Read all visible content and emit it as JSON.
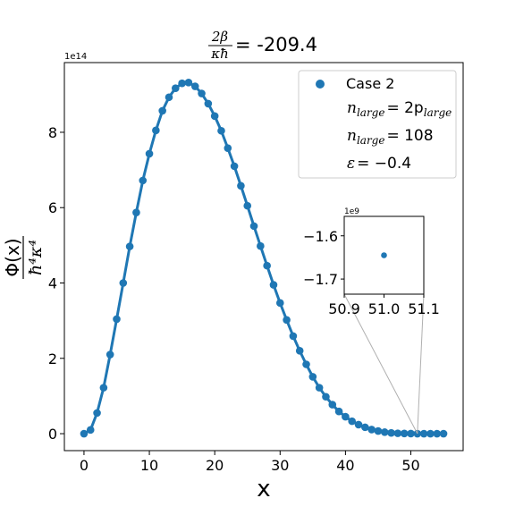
{
  "chart_data": {
    "type": "line",
    "title": {
      "numerator": "2β",
      "denominator": "κħ",
      "value": "= -209.4"
    },
    "xlabel": "x",
    "ylabel": {
      "numerator": "Φ(x)",
      "denominator": "ħ⁴κ⁴"
    },
    "y_offset_label": "1e14",
    "xlim": [
      -3.0,
      58.0
    ],
    "ylim": [
      -0.45,
      9.85
    ],
    "xticks": [
      0,
      10,
      20,
      30,
      40,
      50
    ],
    "xtick_labels": [
      "0",
      "10",
      "20",
      "30",
      "40",
      "50"
    ],
    "yticks": [
      0,
      2,
      4,
      6,
      8
    ],
    "ytick_labels": [
      "0",
      "2",
      "4",
      "6",
      "8"
    ],
    "grid": false,
    "legend_position": "top-right",
    "color": "#1f77b4",
    "series": [
      {
        "name": "Case 2",
        "x": [
          0,
          1,
          2,
          3,
          4,
          5,
          6,
          7,
          8,
          9,
          10,
          11,
          12,
          13,
          14,
          15,
          16,
          17,
          18,
          19,
          20,
          21,
          22,
          23,
          24,
          25,
          26,
          27,
          28,
          29,
          30,
          31,
          32,
          33,
          34,
          35,
          36,
          37,
          38,
          39,
          40,
          41,
          42,
          43,
          44,
          45,
          46,
          47,
          48,
          49,
          50,
          51,
          52,
          53,
          54,
          55
        ],
        "y": [
          0.0,
          0.1,
          0.55,
          1.22,
          2.1,
          3.04,
          4.0,
          4.97,
          5.87,
          6.72,
          7.43,
          8.05,
          8.57,
          8.93,
          9.17,
          9.3,
          9.32,
          9.22,
          9.03,
          8.76,
          8.43,
          8.04,
          7.58,
          7.1,
          6.58,
          6.05,
          5.51,
          4.98,
          4.46,
          3.95,
          3.47,
          3.02,
          2.59,
          2.2,
          1.84,
          1.51,
          1.22,
          0.98,
          0.77,
          0.59,
          0.45,
          0.33,
          0.24,
          0.17,
          0.11,
          0.07,
          0.04,
          0.02,
          0.01,
          0.005,
          0.002,
          0.0,
          0.0,
          0.0,
          0.0,
          0.0
        ]
      }
    ],
    "legend": {
      "entries": [
        "Case 2"
      ],
      "notes": [
        {
          "sym": "n",
          "sub": "large",
          "rhs": "= 2p",
          "rhs_sub": "large"
        },
        {
          "sym": "n",
          "sub": "large",
          "rhs": "= 108",
          "rhs_sub": ""
        },
        {
          "sym": "ε",
          "sub": "",
          "rhs": "= −0.4",
          "rhs_sub": ""
        }
      ]
    },
    "inset": {
      "offset_label": "1e9",
      "xlim": [
        50.9,
        51.1
      ],
      "ylim": [
        -1.735,
        -1.555
      ],
      "xticks": [
        50.9,
        51.0,
        51.1
      ],
      "xtick_labels": [
        "50.9",
        "51.0",
        "51.1"
      ],
      "yticks": [
        -1.6,
        -1.7
      ],
      "ytick_labels": [
        "−1.6",
        "−1.7"
      ],
      "point": {
        "x": 51.0,
        "y": -1.645
      },
      "zoom_target_x": 51.0
    }
  }
}
